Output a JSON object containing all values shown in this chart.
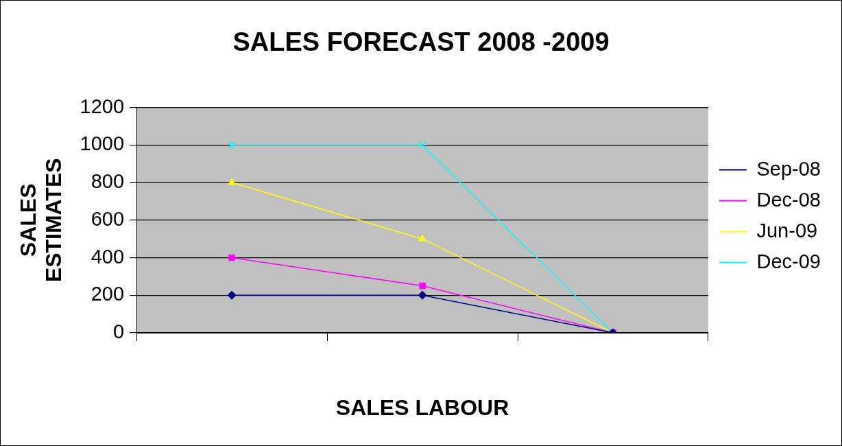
{
  "chart_data": {
    "type": "line",
    "title": "SALES FORECAST 2008 -2009",
    "xlabel": "SALES LABOUR",
    "ylabel": "SALES ESTIMATES",
    "categories": [
      null,
      null,
      null
    ],
    "series": [
      {
        "name": "Sep-08",
        "color": "#000080",
        "marker": "diamond",
        "values": [
          200,
          200,
          0
        ]
      },
      {
        "name": "Dec-08",
        "color": "#ff00ff",
        "marker": "square",
        "values": [
          400,
          250,
          0
        ]
      },
      {
        "name": "Jun-09",
        "color": "#ffff00",
        "marker": "triangle",
        "values": [
          800,
          500,
          0
        ]
      },
      {
        "name": "Dec-09",
        "color": "#00ffff",
        "marker": "cross",
        "values": [
          1000,
          1000,
          0
        ]
      }
    ],
    "ylim": [
      0,
      1200
    ],
    "yticks": [
      0,
      200,
      400,
      600,
      800,
      1000,
      1200
    ],
    "grid": "y",
    "legend": "right",
    "line_style": "solid"
  }
}
